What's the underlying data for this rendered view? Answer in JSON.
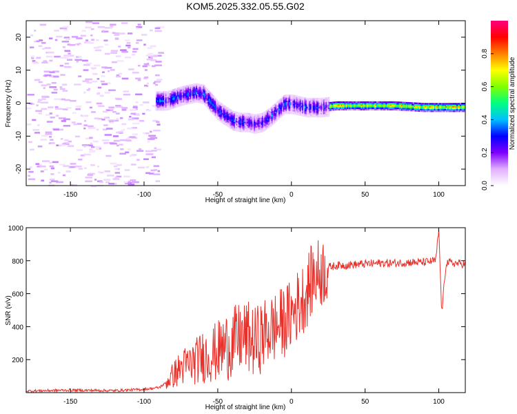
{
  "chart_data": [
    {
      "type": "heatmap",
      "title": "KOM5.2025.332.05.55.G02",
      "xlabel": "Height of straight line (km)",
      "ylabel": "Frequency (Hz)",
      "xlim": [
        -180,
        118
      ],
      "ylim": [
        -25,
        25
      ],
      "xticks": [
        -150,
        -100,
        -50,
        0,
        50,
        100
      ],
      "yticks": [
        -20,
        -10,
        0,
        10,
        20
      ],
      "colorbar": {
        "label": "Normalized spectral amplitude",
        "range": [
          0,
          1
        ],
        "ticks": [
          0.0,
          0.2,
          0.4,
          0.6,
          0.8
        ],
        "colors": [
          "#ffffff",
          "#e0b0ff",
          "#8000ff",
          "#0000ff",
          "#00c0ff",
          "#00ff80",
          "#80ff00",
          "#ffff00",
          "#ff8000",
          "#ff0000",
          "#ff0080"
        ]
      },
      "ridge": {
        "description": "dominant frequency trace",
        "x": [
          -92,
          -85,
          -75,
          -65,
          -60,
          -55,
          -50,
          -45,
          -40,
          -35,
          -30,
          -25,
          -20,
          -15,
          -10,
          -5,
          0,
          10,
          20,
          30,
          50,
          70,
          90,
          100,
          110,
          118
        ],
        "y": [
          1,
          1,
          2.5,
          3.5,
          3,
          0.5,
          -2,
          -3.5,
          -5,
          -5.5,
          -5.5,
          -6,
          -5.5,
          -4,
          -2,
          0,
          0,
          -1,
          -1,
          -0.5,
          -0.5,
          -0.5,
          -1,
          -1,
          -1,
          -1
        ]
      }
    },
    {
      "type": "line",
      "title": "",
      "xlabel": "Height of straight line (km)",
      "ylabel": "SNR (v/v)",
      "xlim": [
        -180,
        118
      ],
      "ylim": [
        0,
        1000
      ],
      "xticks": [
        -150,
        -100,
        -50,
        0,
        50,
        100
      ],
      "yticks": [
        200,
        400,
        600,
        800,
        1000
      ],
      "color": "#e8302a",
      "series": [
        {
          "name": "SNR",
          "x": [
            -180,
            -150,
            -120,
            -100,
            -90,
            -85,
            -80,
            -75,
            -70,
            -65,
            -60,
            -55,
            -50,
            -45,
            -40,
            -35,
            -30,
            -25,
            -20,
            -15,
            -10,
            -5,
            0,
            5,
            10,
            12,
            15,
            20,
            25,
            30,
            40,
            50,
            60,
            70,
            80,
            90,
            98,
            100,
            102,
            105,
            110,
            118
          ],
          "y": [
            10,
            15,
            12,
            20,
            30,
            60,
            110,
            150,
            170,
            190,
            220,
            230,
            250,
            280,
            300,
            330,
            340,
            300,
            340,
            380,
            400,
            430,
            470,
            540,
            600,
            650,
            700,
            730,
            760,
            770,
            775,
            780,
            785,
            785,
            790,
            790,
            800,
            990,
            480,
            790,
            785,
            780
          ]
        }
      ]
    }
  ]
}
